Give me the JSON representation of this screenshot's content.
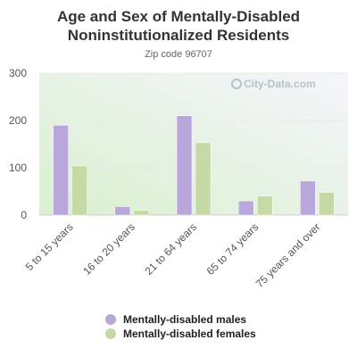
{
  "chart_data": {
    "type": "bar",
    "title": "Age and Sex of Mentally-Disabled Noninstitutionalized Residents",
    "subtitle": "Zip code 96707",
    "watermark": "City-Data.com",
    "categories": [
      "5 to 15 years",
      "16 to 20 years",
      "21 to 64 years",
      "65 to 74 years",
      "75 years and over"
    ],
    "series": [
      {
        "name": "Mentally-disabled males",
        "color": "#b9a7dc",
        "values": [
          190,
          18,
          210,
          30,
          72
        ]
      },
      {
        "name": "Mentally-disabled females",
        "color": "#c5d9a5",
        "values": [
          104,
          10,
          153,
          40,
          48
        ]
      }
    ],
    "ylim": [
      0,
      300
    ],
    "yticks": [
      0,
      100,
      200,
      300
    ],
    "grid": true,
    "legend_position": "bottom"
  }
}
